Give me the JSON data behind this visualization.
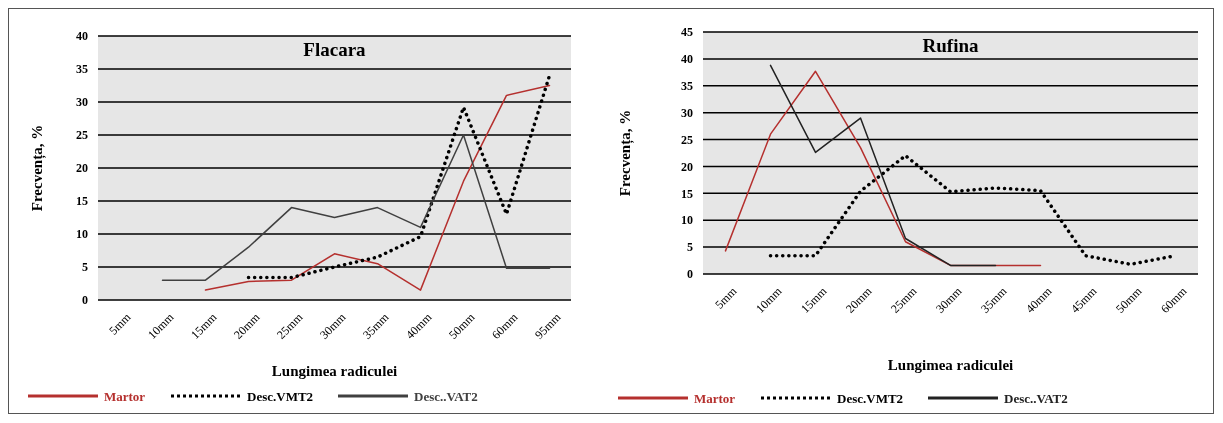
{
  "chart_data": [
    {
      "type": "line",
      "title": "Flacara",
      "xlabel": "Lungimea radiculei",
      "ylabel": "Frecvența, %",
      "categories": [
        "5mm",
        "10mm",
        "15mm",
        "20mm",
        "25mm",
        "30mm",
        "35mm",
        "40mm",
        "50mm",
        "60mm",
        "95mm"
      ],
      "series": [
        {
          "name": "Martor",
          "color": "#b5302e",
          "line_style": "solid",
          "values": [
            null,
            null,
            1.5,
            2.8,
            3,
            7,
            5.5,
            1.5,
            18,
            31,
            32.5
          ]
        },
        {
          "name": "Desc.VMT2",
          "color": "#000000",
          "line_style": "dotted",
          "values": [
            null,
            null,
            null,
            3.4,
            3.4,
            5,
            6.5,
            9.6,
            29.2,
            13,
            34
          ]
        },
        {
          "name": "Desc..VAT2",
          "color": "#404040",
          "line_style": "solid",
          "values": [
            null,
            3,
            3,
            8,
            14,
            12.5,
            14,
            11,
            25,
            4.8,
            4.8
          ]
        }
      ],
      "ylim": [
        0,
        40
      ],
      "yticks": [
        0,
        5,
        10,
        15,
        20,
        25,
        30,
        35,
        40
      ],
      "grid": "y",
      "legend": "bottom",
      "marker": "none"
    },
    {
      "type": "line",
      "title": "Rufina",
      "xlabel": "Lungimea radiculei",
      "ylabel": "Frecvența, %",
      "categories": [
        "5mm",
        "10mm",
        "15mm",
        "20mm",
        "25mm",
        "30mm",
        "35mm",
        "40mm",
        "45mm",
        "50mm",
        "60mm"
      ],
      "series": [
        {
          "name": "Martor",
          "color": "#b5302e",
          "line_style": "solid",
          "values": [
            4.3,
            26,
            37.7,
            23.5,
            6,
            1.6,
            1.6,
            1.6,
            null,
            null,
            null
          ]
        },
        {
          "name": "Desc.VMT2",
          "color": "#000000",
          "line_style": "dotted",
          "values": [
            null,
            3.4,
            3.4,
            15.4,
            22,
            15.3,
            16,
            15.5,
            3.4,
            1.8,
            3.4
          ]
        },
        {
          "name": "Desc..VAT2",
          "color": "#222222",
          "line_style": "solid",
          "values": [
            null,
            38.8,
            22.6,
            29,
            6.6,
            1.6,
            1.6,
            null,
            null,
            null,
            null
          ]
        }
      ],
      "ylim": [
        0,
        45
      ],
      "yticks": [
        0,
        5,
        10,
        15,
        20,
        25,
        30,
        35,
        40,
        45
      ],
      "grid": "y",
      "legend": "bottom",
      "marker": "none"
    }
  ]
}
